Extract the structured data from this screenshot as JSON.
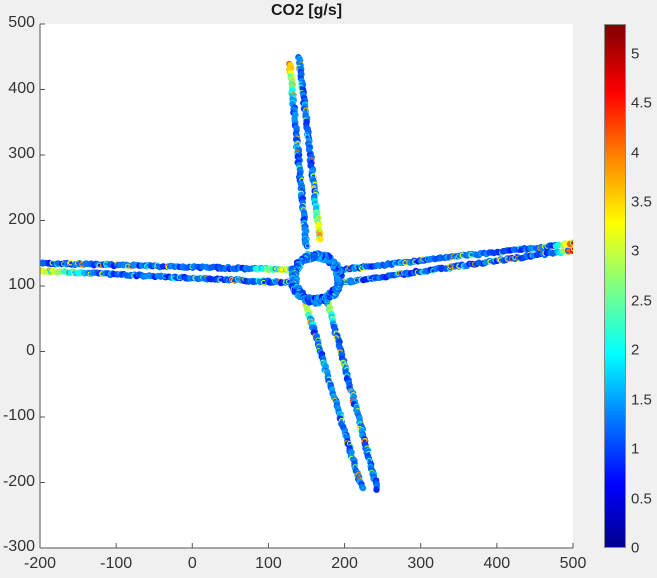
{
  "chart_data": {
    "type": "scatter",
    "title": "CO2 [g/s]",
    "xlabel": "",
    "ylabel": "",
    "xlim": [
      -200,
      500
    ],
    "ylim": [
      -300,
      500
    ],
    "xticks": [
      "-200",
      "-100",
      "0",
      "100",
      "200",
      "300",
      "400",
      "500"
    ],
    "yticks": [
      "500",
      "400",
      "300",
      "200",
      "100",
      "0",
      "-100",
      "-200",
      "-300"
    ],
    "grid": false,
    "colorbar": {
      "label": "CO2 [g/s]",
      "colormap": "jet",
      "range": [
        0,
        5.3
      ],
      "ticks": [
        "0",
        "0.5",
        "1",
        "1.5",
        "2",
        "2.5",
        "3",
        "3.5",
        "4",
        "4.5",
        "5"
      ]
    },
    "description": "Vehicle CO2 emission rate along trajectories through a roundabout with four two-lane approach arms; mostly 1-1.5 g/s with hotspots (3.5-5 g/s) at roundabout entries and the far east end.",
    "roundabout": {
      "center": [
        163,
        112
      ],
      "radius": 30
    },
    "arms": [
      {
        "name": "north",
        "lanes": [
          {
            "from": [
              128,
              440
            ],
            "to": [
              150,
              160
            ]
          },
          {
            "from": [
              140,
              450
            ],
            "to": [
              168,
              170
            ]
          }
        ],
        "typical_value": 1.2,
        "hotspot_value": 3.8
      },
      {
        "name": "west",
        "lanes": [
          {
            "from": [
              -198,
              135
            ],
            "to": [
              130,
              125
            ]
          },
          {
            "from": [
              -198,
              123
            ],
            "to": [
              130,
              105
            ]
          }
        ],
        "typical_value": 1.1,
        "hotspot_value": 3.5
      },
      {
        "name": "east",
        "lanes": [
          {
            "from": [
              195,
              125
            ],
            "to": [
              500,
              165
            ]
          },
          {
            "from": [
              195,
              105
            ],
            "to": [
              500,
              155
            ]
          }
        ],
        "typical_value": 1.1,
        "hotspot_value": 4.6
      },
      {
        "name": "south",
        "lanes": [
          {
            "from": [
              150,
              70
            ],
            "to": [
              223,
              -210
            ]
          },
          {
            "from": [
              178,
              75
            ],
            "to": [
              243,
              -210
            ]
          }
        ],
        "typical_value": 1.2,
        "hotspot_value": 3.2
      }
    ]
  }
}
